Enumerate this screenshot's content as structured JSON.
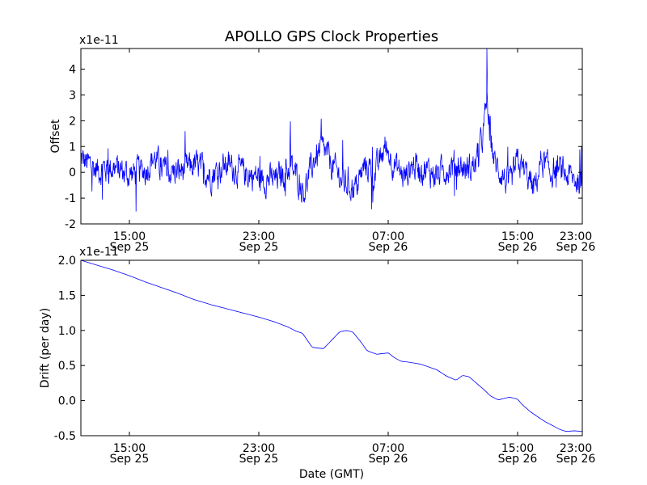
{
  "title": "APOLLO GPS Clock Properties",
  "chart_data": [
    {
      "type": "line",
      "ylabel": "Offset",
      "xlabel": "",
      "y_multiplier_label": "x1e-11",
      "xlim_hours": [
        12,
        43
      ],
      "ylim": [
        -2,
        4.8
      ],
      "yticks": [
        {
          "value": -2,
          "label": "-2"
        },
        {
          "value": -1,
          "label": "-1"
        },
        {
          "value": 0,
          "label": "0"
        },
        {
          "value": 1,
          "label": "1"
        },
        {
          "value": 2,
          "label": "2"
        },
        {
          "value": 3,
          "label": "3"
        },
        {
          "value": 4,
          "label": "4"
        }
      ],
      "xticks": [
        {
          "hour": 15,
          "time": "15:00",
          "date": "Sep 25"
        },
        {
          "hour": 23,
          "time": "23:00",
          "date": "Sep 25"
        },
        {
          "hour": 31,
          "time": "07:00",
          "date": "Sep 26"
        },
        {
          "hour": 39,
          "time": "15:00",
          "date": "Sep 26"
        },
        {
          "hour": 47,
          "time": "23:00",
          "date": "Sep 26"
        }
      ],
      "series": [
        {
          "name": "Offset",
          "color": "#0000ff",
          "noisy": true,
          "noise_amplitude": 0.45,
          "hours": [
            12,
            13,
            14,
            15,
            16,
            16.5,
            17,
            18,
            19,
            20,
            21,
            22,
            23,
            24,
            25,
            25.8,
            26.5,
            27,
            27.6,
            28.3,
            29,
            29.6,
            30.2,
            30.8,
            31.5,
            32,
            32.5,
            33,
            34,
            35,
            36,
            36.5,
            36.9,
            37.1,
            37.3,
            37.6,
            38,
            38.5,
            39,
            39.5,
            40,
            40.5,
            41,
            41.5,
            42,
            42.5,
            43
          ],
          "values": [
            0.5,
            0.1,
            0.2,
            -0.1,
            0.1,
            0.6,
            0.1,
            0.0,
            0.3,
            -0.1,
            0.3,
            0.0,
            -0.2,
            -0.3,
            0.2,
            -0.7,
            0.6,
            0.9,
            0.2,
            -0.4,
            -0.6,
            0.3,
            -0.1,
            1.0,
            0.2,
            -0.2,
            0.3,
            0.2,
            -0.1,
            0.3,
            0.1,
            0.4,
            1.6,
            2.8,
            1.5,
            0.3,
            0.0,
            -0.6,
            0.4,
            0.0,
            -0.7,
            0.5,
            0.0,
            0.1,
            -0.1,
            -0.3,
            -0.3
          ]
        }
      ],
      "annotations": [
        {
          "hour": 37.1,
          "value": 4.8
        }
      ]
    },
    {
      "type": "line",
      "ylabel": "Drift (per day)",
      "xlabel": "Date (GMT)",
      "y_multiplier_label": "x1e-11",
      "xlim_hours": [
        12,
        43
      ],
      "ylim": [
        -0.5,
        2.0
      ],
      "yticks": [
        {
          "value": -0.5,
          "label": "-0.5"
        },
        {
          "value": 0.0,
          "label": "0.0"
        },
        {
          "value": 0.5,
          "label": "0.5"
        },
        {
          "value": 1.0,
          "label": "1.0"
        },
        {
          "value": 1.5,
          "label": "1.5"
        },
        {
          "value": 2.0,
          "label": "2.0"
        }
      ],
      "xticks": [
        {
          "hour": 15,
          "time": "15:00",
          "date": "Sep 25"
        },
        {
          "hour": 23,
          "time": "23:00",
          "date": "Sep 25"
        },
        {
          "hour": 31,
          "time": "07:00",
          "date": "Sep 26"
        },
        {
          "hour": 39,
          "time": "15:00",
          "date": "Sep 26"
        },
        {
          "hour": 47,
          "time": "23:00",
          "date": "Sep 26"
        }
      ],
      "series": [
        {
          "name": "Drift",
          "color": "#0000ff",
          "noisy": false,
          "hours": [
            12,
            13,
            14,
            15,
            16,
            17,
            18,
            19,
            20,
            21,
            22,
            23,
            24,
            24.8,
            25.3,
            25.7,
            26.3,
            27,
            27.5,
            28,
            28.4,
            28.8,
            29.3,
            29.7,
            30.3,
            31,
            31.4,
            31.8,
            32.2,
            33,
            34,
            34.6,
            35.2,
            35.6,
            36,
            36.5,
            37,
            37.3,
            37.8,
            38.5,
            39,
            39.3,
            39.8,
            40.3,
            40.7,
            41.2,
            41.6,
            42,
            42.5,
            43
          ],
          "values": [
            2.0,
            1.93,
            1.86,
            1.78,
            1.69,
            1.61,
            1.53,
            1.44,
            1.37,
            1.31,
            1.25,
            1.19,
            1.12,
            1.05,
            0.99,
            0.96,
            0.76,
            0.74,
            0.86,
            0.98,
            1.0,
            0.98,
            0.84,
            0.71,
            0.66,
            0.68,
            0.61,
            0.56,
            0.55,
            0.52,
            0.44,
            0.35,
            0.29,
            0.36,
            0.34,
            0.24,
            0.14,
            0.07,
            0.01,
            0.05,
            0.02,
            -0.06,
            -0.16,
            -0.24,
            -0.3,
            -0.36,
            -0.41,
            -0.44,
            -0.43,
            -0.44
          ]
        }
      ],
      "annotations": []
    }
  ]
}
